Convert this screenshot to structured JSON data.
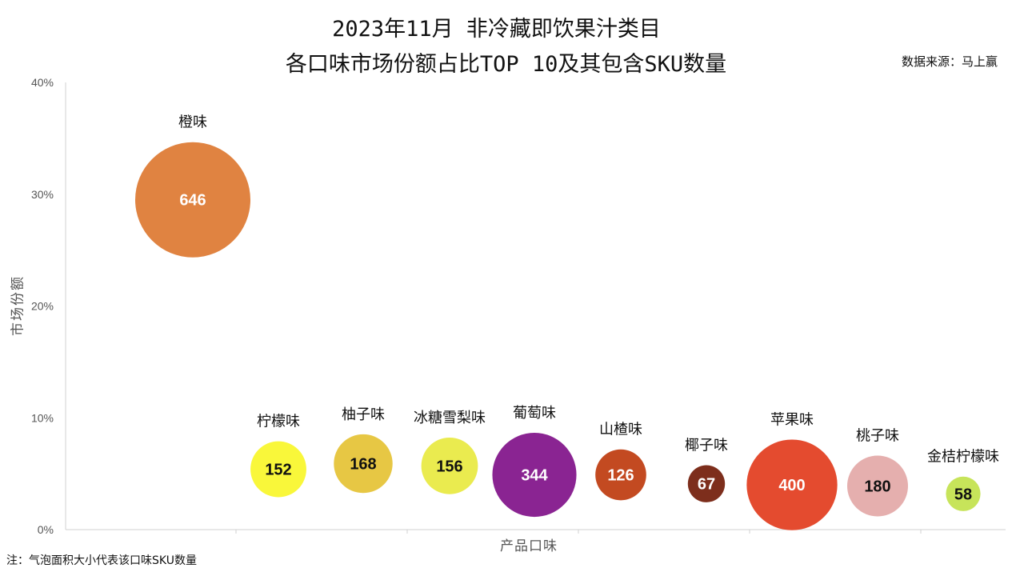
{
  "header": {
    "title_line1": "2023年11月 非冷藏即饮果汁类目",
    "title_line2": "各口味市场份额占比TOP 10及其包含SKU数量",
    "source": "数据来源：马上赢"
  },
  "footer": {
    "note": "注：气泡面积大小代表该口味SKU数量"
  },
  "chart_data": {
    "type": "scatter",
    "variant": "bubble",
    "title": "2023年11月 非冷藏即饮果汁类目 各口味市场份额占比TOP 10及其包含SKU数量",
    "xlabel": "产品口味",
    "ylabel": "市场份额",
    "ylim": [
      0,
      0.4
    ],
    "yticks": [
      "0%",
      "10%",
      "20%",
      "30%",
      "40%"
    ],
    "y_tick_values": [
      0,
      0.1,
      0.2,
      0.3,
      0.4
    ],
    "xlim": [
      0,
      11
    ],
    "grid": false,
    "legend": "none",
    "points": [
      {
        "label": "橙味",
        "x": 1,
        "y": 0.295,
        "size": 646,
        "color": "#E08341",
        "text_color": "#ffffff"
      },
      {
        "label": "柠檬味",
        "x": 2,
        "y": 0.054,
        "size": 152,
        "color": "#F9F73A",
        "text_color": "#111111"
      },
      {
        "label": "柚子味",
        "x": 3,
        "y": 0.059,
        "size": 168,
        "color": "#E7C744",
        "text_color": "#111111"
      },
      {
        "label": "冰糖雪梨味",
        "x": 4,
        "y": 0.057,
        "size": 156,
        "color": "#EAEB4F",
        "text_color": "#111111"
      },
      {
        "label": "葡萄味",
        "x": 5,
        "y": 0.049,
        "size": 344,
        "color": "#8A2492",
        "text_color": "#ffffff"
      },
      {
        "label": "山楂味",
        "x": 6,
        "y": 0.049,
        "size": 126,
        "color": "#C34A21",
        "text_color": "#ffffff"
      },
      {
        "label": "椰子味",
        "x": 7,
        "y": 0.041,
        "size": 67,
        "color": "#7D2E1C",
        "text_color": "#ffffff"
      },
      {
        "label": "苹果味",
        "x": 8,
        "y": 0.04,
        "size": 400,
        "color": "#E44B2F",
        "text_color": "#ffffff"
      },
      {
        "label": "桃子味",
        "x": 9,
        "y": 0.039,
        "size": 180,
        "color": "#E5AFAE",
        "text_color": "#111111"
      },
      {
        "label": "金桔柠檬味",
        "x": 10,
        "y": 0.032,
        "size": 58,
        "color": "#C7E45A",
        "text_color": "#111111"
      }
    ]
  }
}
